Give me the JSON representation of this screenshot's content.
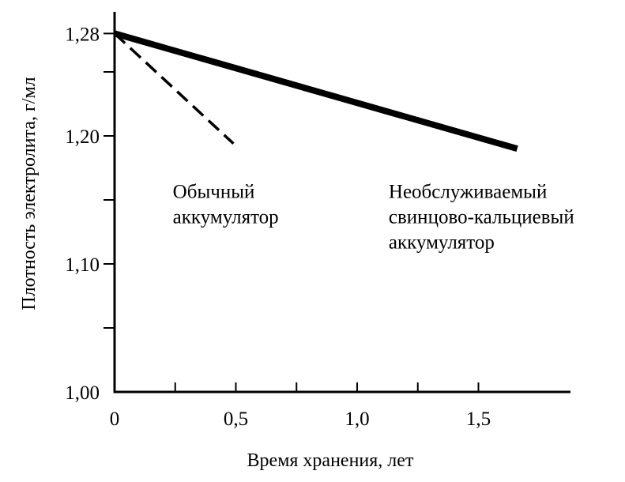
{
  "chart_data": {
    "type": "line",
    "xlabel": "Время хранения, лет",
    "ylabel": "Плотность электролита, г/мл",
    "xlim": [
      0,
      1.9
    ],
    "ylim": [
      1.0,
      1.29
    ],
    "x_ticks": [
      {
        "value": 0,
        "label": "0"
      },
      {
        "value": 0.5,
        "label": "0,5"
      },
      {
        "value": 1.0,
        "label": "1,0"
      },
      {
        "value": 1.5,
        "label": "1,5"
      }
    ],
    "x_minor_ticks": [
      0.25,
      0.75,
      1.25
    ],
    "y_ticks": [
      {
        "value": 1.0,
        "label": "1,00"
      },
      {
        "value": 1.1,
        "label": "1,10"
      },
      {
        "value": 1.2,
        "label": "1,20"
      },
      {
        "value": 1.28,
        "label": "1,28"
      }
    ],
    "y_minor_ticks": [
      1.05,
      1.15,
      1.25
    ],
    "grid": false,
    "series": [
      {
        "style": "dashed",
        "points": [
          [
            0,
            1.28
          ],
          [
            0.49,
            1.194
          ]
        ]
      },
      {
        "style": "solid-thick",
        "points": [
          [
            0,
            1.28
          ],
          [
            1.66,
            1.19
          ]
        ]
      }
    ],
    "annotations": [
      {
        "id": "ordinary",
        "lines": [
          "Обычный",
          "аккумулятор"
        ],
        "x": 0.24,
        "y": 1.17
      },
      {
        "id": "maintenance-free",
        "lines": [
          "Необслуживаемый",
          "свинцово-кальциевый",
          "аккумулятор"
        ],
        "x": 1.13,
        "y": 1.17
      }
    ]
  }
}
